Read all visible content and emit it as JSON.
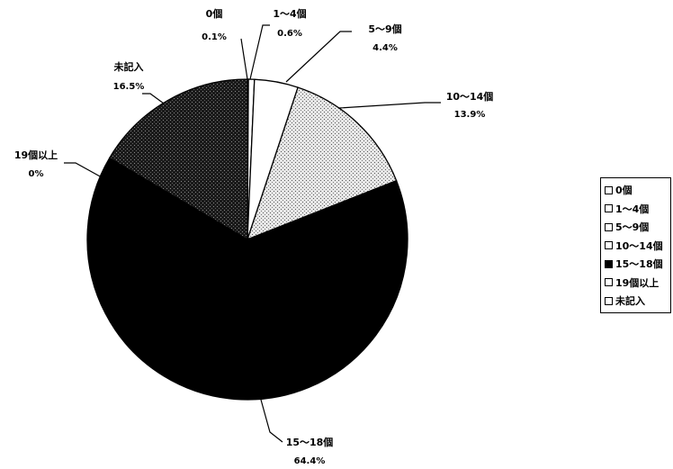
{
  "chart_data": {
    "type": "pie",
    "title": "",
    "legend_position": "right",
    "slices": [
      {
        "label": "0個",
        "value": 0.1,
        "value_label": "0.1%",
        "color": "#ffffff",
        "pattern": "none"
      },
      {
        "label": "1～4個",
        "value": 0.6,
        "value_label": "0.6%",
        "color": "#ffffff",
        "pattern": "none"
      },
      {
        "label": "5～9個",
        "value": 4.4,
        "value_label": "4.4%",
        "color": "#ffffff",
        "pattern": "none"
      },
      {
        "label": "10～14個",
        "value": 13.9,
        "value_label": "13.9%",
        "color": "#dcdcdc",
        "pattern": "light-dots"
      },
      {
        "label": "15～18個",
        "value": 64.4,
        "value_label": "64.4%",
        "color": "#000000",
        "pattern": "solid"
      },
      {
        "label": "19個以上",
        "value": 0,
        "value_label": "0%",
        "color": "#ffffff",
        "pattern": "none"
      },
      {
        "label": "未記入",
        "value": 16.5,
        "value_label": "16.5%",
        "color": "#2a2a2a",
        "pattern": "dark-dots"
      }
    ]
  }
}
